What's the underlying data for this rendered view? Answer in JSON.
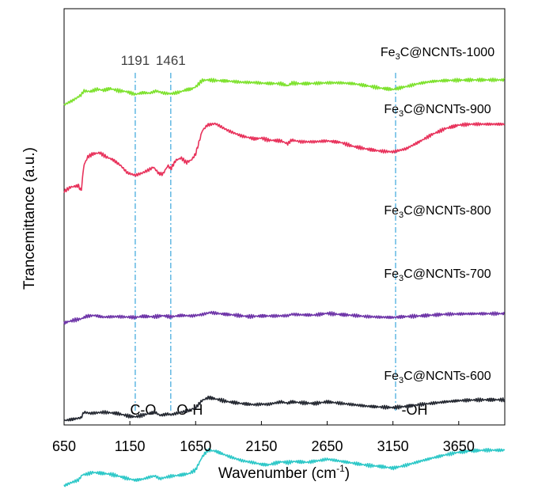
{
  "chart_data": {
    "type": "line",
    "xlabel_main": "Wavenumber (cm",
    "xlabel_sup": "-1",
    "xlabel_end": ")",
    "ylabel": "Trancemittance  (a.u.)",
    "xlim": [
      650,
      4000
    ],
    "xticks": [
      "650",
      "1150",
      "1650",
      "2150",
      "2650",
      "3150",
      "3650"
    ],
    "yticks_shown": false,
    "grid": false,
    "series_colors": {
      "Fe3C@NCNTs-1000": "#7ee22e",
      "Fe3C@NCNTs-900": "#e8335c",
      "Fe3C@NCNTs-800": "#6e35a8",
      "Fe3C@NCNTs-700": "#262a33",
      "Fe3C@NCNTs-600": "#2ec8c8"
    },
    "series": [
      {
        "name": "Fe3C@NCNTs-1000",
        "label_main": "Fe",
        "label_sub": "3",
        "label_rest": "C@NCNTs-1000",
        "x": [
          650,
          720,
          780,
          800,
          850,
          900,
          950,
          1000,
          1060,
          1120,
          1191,
          1250,
          1300,
          1350,
          1400,
          1461,
          1520,
          1580,
          1620,
          1650,
          1700,
          1740,
          1800,
          1900,
          2000,
          2100,
          2150,
          2200,
          2300,
          2350,
          2380,
          2450,
          2550,
          2650,
          2750,
          2850,
          2950,
          3050,
          3150,
          3250,
          3350,
          3450,
          3550,
          3650,
          3750,
          3850,
          4000
        ],
        "y": [
          -8.6,
          -7.0,
          -5.2,
          -3.8,
          -4.0,
          -3.2,
          -3.6,
          -3.0,
          -3.7,
          -4.0,
          -5.0,
          -4.4,
          -4.6,
          -3.8,
          -4.5,
          -4.8,
          -4.3,
          -3.4,
          -3.1,
          -2.4,
          -0.2,
          0.0,
          -0.2,
          -0.4,
          -0.8,
          -0.9,
          -1.1,
          -1.2,
          -1.3,
          -2.0,
          -1.1,
          -1.3,
          -1.2,
          -1.0,
          -1.0,
          -1.3,
          -2.0,
          -2.8,
          -3.3,
          -2.3,
          -1.2,
          -0.5,
          -0.2,
          -0.1,
          0.0,
          0.0,
          0.0
        ]
      },
      {
        "name": "Fe3C@NCNTs-900",
        "label_main": "Fe",
        "label_sub": "3",
        "label_rest": "C@NCNTs-900",
        "x": [
          650,
          700,
          760,
          780,
          800,
          830,
          870,
          920,
          970,
          1020,
          1080,
          1130,
          1191,
          1240,
          1290,
          1330,
          1370,
          1400,
          1440,
          1461,
          1500,
          1540,
          1580,
          1620,
          1650,
          1700,
          1740,
          1800,
          1900,
          2000,
          2100,
          2150,
          2200,
          2300,
          2350,
          2380,
          2450,
          2550,
          2650,
          2750,
          2850,
          2950,
          3050,
          3150,
          3250,
          3350,
          3450,
          3550,
          3650,
          3750,
          3850,
          4000
        ],
        "y": [
          -23.0,
          -21.5,
          -21.0,
          -23.0,
          -14.0,
          -11.0,
          -10.0,
          -9.6,
          -11.0,
          -12.0,
          -14.0,
          -16.5,
          -17.4,
          -16.7,
          -15.6,
          -14.6,
          -16.8,
          -17.0,
          -14.0,
          -15.2,
          -12.2,
          -11.4,
          -13.0,
          -12.0,
          -10.0,
          -2.0,
          0.0,
          0.5,
          -2.0,
          -3.8,
          -4.8,
          -4.5,
          -5.2,
          -5.5,
          -6.5,
          -5.2,
          -5.8,
          -5.8,
          -5.5,
          -6.0,
          -7.4,
          -8.3,
          -9.0,
          -9.3,
          -8.2,
          -5.8,
          -3.2,
          -1.2,
          0.0,
          0.3,
          0.3,
          0.3
        ]
      },
      {
        "name": "Fe3C@NCNTs-800",
        "label_main": "Fe",
        "label_sub": "3",
        "label_rest": "C@NCNTs-800",
        "x": [
          650,
          720,
          780,
          820,
          880,
          950,
          1050,
          1150,
          1191,
          1250,
          1330,
          1400,
          1461,
          1540,
          1620,
          1700,
          1760,
          1850,
          1950,
          2050,
          2150,
          2250,
          2350,
          2380,
          2450,
          2550,
          2650,
          2750,
          2850,
          2950,
          3050,
          3150,
          3250,
          3350,
          3450,
          3550,
          3650,
          3800,
          4000
        ],
        "y": [
          -29.6,
          -28.7,
          -28.2,
          -27.3,
          -27.0,
          -27.6,
          -27.4,
          -27.6,
          -27.7,
          -27.3,
          -27.5,
          -27.1,
          -27.5,
          -27.0,
          -27.2,
          -26.7,
          -26.0,
          -26.5,
          -26.9,
          -27.4,
          -27.2,
          -27.2,
          -27.1,
          -26.6,
          -26.8,
          -26.9,
          -26.3,
          -26.7,
          -27.0,
          -27.4,
          -27.6,
          -27.7,
          -27.4,
          -27.2,
          -26.9,
          -26.6,
          -26.5,
          -26.4,
          -26.4
        ]
      },
      {
        "name": "Fe3C@NCNTs-700",
        "label_main": "Fe",
        "label_sub": "3",
        "label_rest": "C@NCNTs-700",
        "x": [
          650,
          720,
          780,
          800,
          850,
          950,
          1050,
          1150,
          1191,
          1250,
          1300,
          1340,
          1380,
          1440,
          1461,
          1520,
          1600,
          1650,
          1700,
          1750,
          1800,
          1900,
          2000,
          2100,
          2150,
          2200,
          2300,
          2350,
          2380,
          2450,
          2550,
          2650,
          2750,
          2850,
          2950,
          3050,
          3150,
          3250,
          3350,
          3450,
          3550,
          3650,
          3750,
          3850,
          4000
        ],
        "y": [
          -41.5,
          -41.0,
          -40.5,
          -38.6,
          -39.0,
          -38.6,
          -39.0,
          -40.0,
          -40.2,
          -39.6,
          -39.0,
          -38.6,
          -39.7,
          -39.2,
          -39.5,
          -38.8,
          -38.0,
          -37.0,
          -34.5,
          -33.5,
          -34.0,
          -35.0,
          -35.6,
          -36.0,
          -35.8,
          -35.9,
          -35.0,
          -35.5,
          -35.0,
          -35.3,
          -35.6,
          -35.0,
          -35.5,
          -36.0,
          -36.5,
          -36.8,
          -37.0,
          -36.6,
          -36.0,
          -35.5,
          -35.0,
          -34.6,
          -34.4,
          -34.3,
          -34.3
        ]
      },
      {
        "name": "Fe3C@NCNTs-600",
        "label_main": "Fe",
        "label_sub": "3",
        "label_rest": "C@NCNTs-600",
        "x": [
          650,
          700,
          760,
          790,
          820,
          870,
          920,
          1000,
          1060,
          1120,
          1191,
          1250,
          1300,
          1340,
          1380,
          1430,
          1461,
          1520,
          1600,
          1650,
          1700,
          1740,
          1800,
          1900,
          2000,
          2100,
          2150,
          2200,
          2300,
          2350,
          2400,
          2500,
          2600,
          2650,
          2750,
          2850,
          2950,
          3050,
          3150,
          3250,
          3350,
          3450,
          3550,
          3650,
          3750,
          3850,
          4000
        ],
        "y": [
          -52.0,
          -51.0,
          -50.0,
          -48.2,
          -48.0,
          -47.4,
          -47.6,
          -48.0,
          -48.6,
          -49.4,
          -50.1,
          -49.7,
          -49.0,
          -48.6,
          -49.6,
          -49.0,
          -48.7,
          -48.4,
          -47.8,
          -46.5,
          -42.0,
          -39.7,
          -40.0,
          -41.8,
          -43.3,
          -44.1,
          -44.6,
          -44.8,
          -43.7,
          -44.0,
          -43.6,
          -43.9,
          -43.2,
          -42.8,
          -43.5,
          -44.2,
          -44.9,
          -45.3,
          -45.9,
          -44.9,
          -43.6,
          -42.4,
          -41.3,
          -40.4,
          -39.9,
          -39.7,
          -39.7
        ]
      }
    ],
    "markers": [
      {
        "x": 1191,
        "top_label": "1191",
        "bottom_label": "C-O"
      },
      {
        "x": 1461,
        "top_label": "1461",
        "bottom_label": "O-H"
      },
      {
        "x": 3170,
        "top_label": "",
        "bottom_label": "-OH"
      }
    ],
    "marker_color": "#3aa6dc"
  }
}
